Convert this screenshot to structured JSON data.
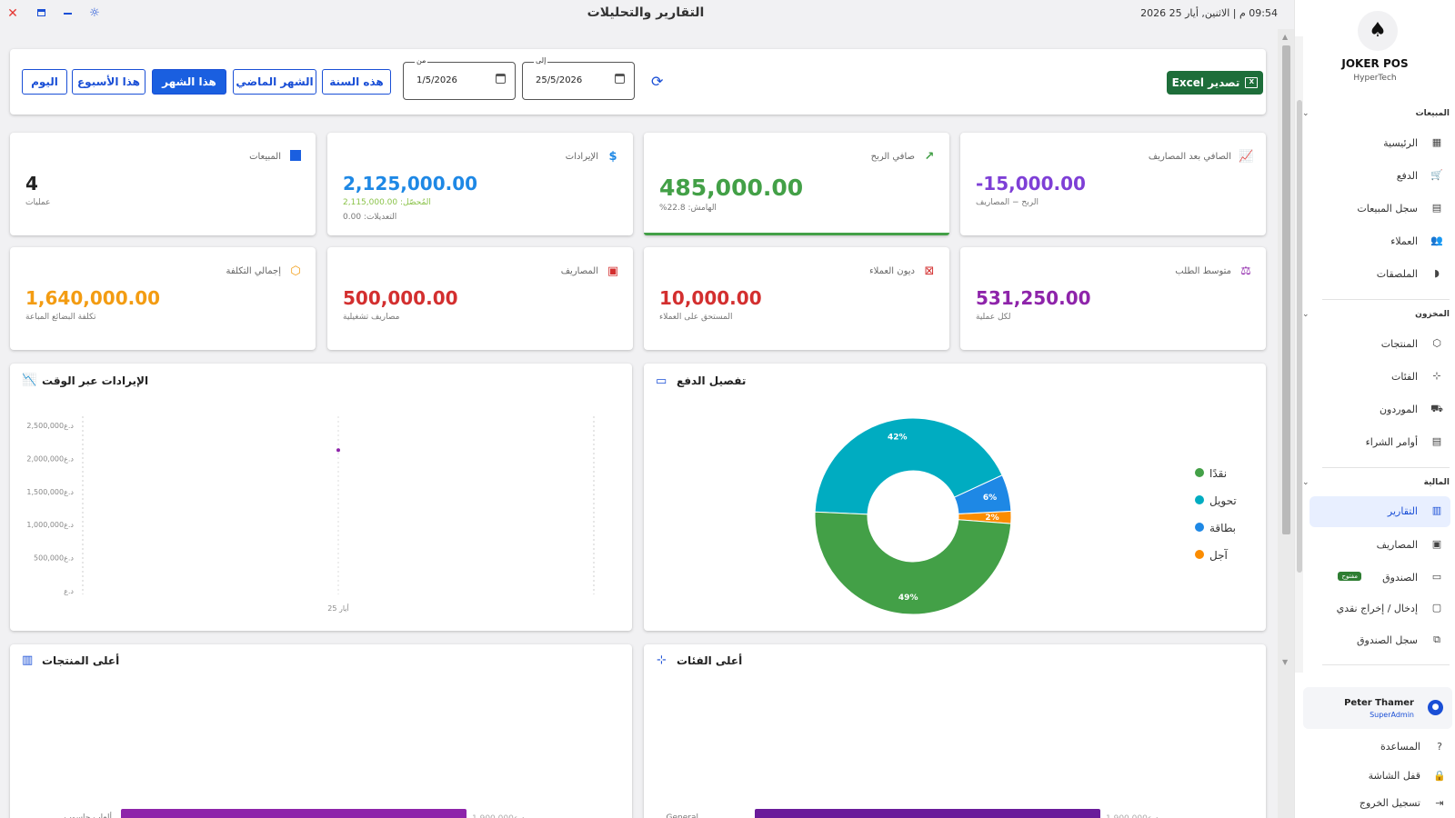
{
  "window": {
    "title": "التقارير والتحليلات",
    "clock": "09:54 م  |  الاثنين, أيار 25 2026"
  },
  "filter": {
    "export_label": "Excel تصدير",
    "date_to": {
      "label": "إلى",
      "value": "25/5/2026"
    },
    "date_from": {
      "label": "من",
      "value": "1/5/2026"
    },
    "periods": [
      "هذه السنة",
      "الشهر الماضي",
      "هذا الشهر",
      "هذا الأسبوع",
      "اليوم"
    ],
    "active_period": "هذا الشهر"
  },
  "stats": {
    "net_after_expenses": {
      "title": "الصافي بعد المصاريف",
      "value": "-15,000.00",
      "sub": "الربح − المصاريف",
      "color": "#7e3fd6"
    },
    "net_profit": {
      "title": "صافي الربح",
      "value": "485,000.00",
      "sub": "الهامش: 22.8%",
      "color": "#43a047"
    },
    "revenue": {
      "title": "الإيرادات",
      "value": "2,125,000.00",
      "sub": "المُحصّل: 2,115,000.00",
      "sub2": "التعديلات: 0.00",
      "color": "#1e88e5"
    },
    "sales": {
      "title": "المبيعات",
      "value": "4",
      "sub": "عمليات",
      "color": "#222222"
    },
    "avg_order": {
      "title": "متوسط الطلب",
      "value": "531,250.00",
      "sub": "لكل عملية",
      "color": "#8e24aa"
    },
    "customer_debts": {
      "title": "ديون العملاء",
      "value": "10,000.00",
      "sub": "المستحق على العملاء",
      "color": "#d32f2f"
    },
    "expenses": {
      "title": "المصاريف",
      "value": "500,000.00",
      "sub": "مصاريف تشغيلية",
      "color": "#d32f2f"
    },
    "total_cost": {
      "title": "إجمالي التكلفة",
      "value": "1,640,000.00",
      "sub": "تكلفة البضائع المباعة",
      "color": "#f39c12"
    }
  },
  "charts": {
    "payment_title": "تفصيل الدفع",
    "revenue_title": "الإيرادات عبر الوقت",
    "top_categories_title": "أعلى الفئات",
    "top_products_title": "أعلى المنتجات"
  },
  "chart_data": [
    {
      "type": "pie",
      "title": "تفصيل الدفع",
      "labels": [
        "نقدًا",
        "تحويل",
        "بطاقة",
        "آجل"
      ],
      "values": [
        49,
        42,
        6,
        2
      ],
      "value_labels": [
        "49%",
        "42%",
        "6%",
        "2%"
      ],
      "colors": [
        "#43a047",
        "#00acc1",
        "#1e88e5",
        "#fb8c00"
      ],
      "legend": "right"
    },
    {
      "type": "scatter",
      "title": "الإيرادات عبر الوقت",
      "x": [
        "25 أيار"
      ],
      "y": [
        2125000
      ],
      "yticks": [
        0,
        500000,
        1000000,
        1500000,
        2000000,
        2500000
      ],
      "ytick_labels": [
        "د.ع",
        "د.ع500,000",
        "د.ع1,000,000",
        "د.ع1,500,000",
        "د.ع2,000,000",
        "د.ع2,500,000"
      ],
      "ylim": [
        0,
        2500000
      ],
      "color": "#8e24aa"
    },
    {
      "type": "bar",
      "title": "أعلى الفئات",
      "categories": [
        "General"
      ],
      "values": [
        1900000
      ],
      "value_labels": [
        "د.ع1,900,000"
      ],
      "color": "#6a1b9a",
      "orientation": "horizontal"
    },
    {
      "type": "bar",
      "title": "أعلى المنتجات",
      "categories": [
        "ألعاب حاسوب"
      ],
      "values": [
        1900000
      ],
      "value_labels": [
        "د.ع1,900,000"
      ],
      "color": "#8e24aa",
      "orientation": "horizontal"
    }
  ],
  "sidebar": {
    "brand": "JOKER POS",
    "brand_sub": "HyperTech",
    "sections": {
      "sales": "المبيعات",
      "inventory": "المخزون",
      "finance": "المالية"
    },
    "items": {
      "home": "الرئيسية",
      "checkout": "الدفع",
      "sales_log": "سجل المبيعات",
      "customers": "العملاء",
      "stickers": "الملصقات",
      "products": "المنتجات",
      "categories": "الفئات",
      "suppliers": "الموردون",
      "purchase_orders": "أوامر الشراء",
      "reports": "التقارير",
      "expenses": "المصاريف",
      "cashbox": "الصندوق",
      "cashbox_badge": "مفتوح",
      "cash_in_out": "إدخال / إخراج نقدي",
      "cashbox_log": "سجل الصندوق"
    },
    "user": {
      "name": "Peter Thamer",
      "role": "SuperAdmin"
    },
    "bottom": {
      "help": "المساعدة",
      "lock": "قفل الشاشة",
      "logout": "تسجيل الخروج"
    }
  }
}
